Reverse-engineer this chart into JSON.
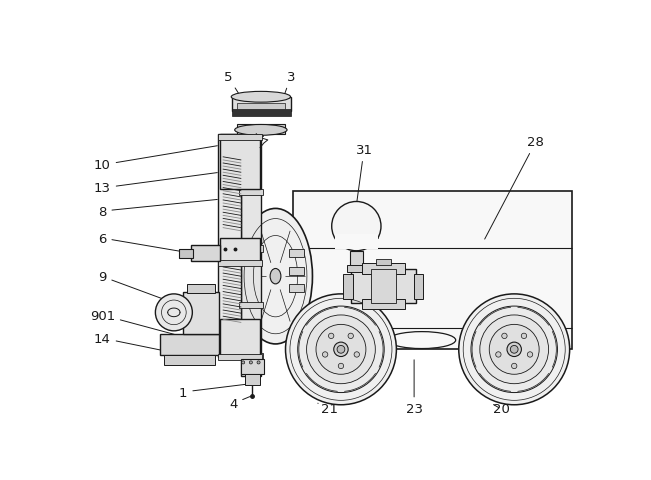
{
  "bg_color": "#ffffff",
  "line_color": "#1a1a1a",
  "fig_width": 6.51,
  "fig_height": 4.81,
  "dpi": 100
}
